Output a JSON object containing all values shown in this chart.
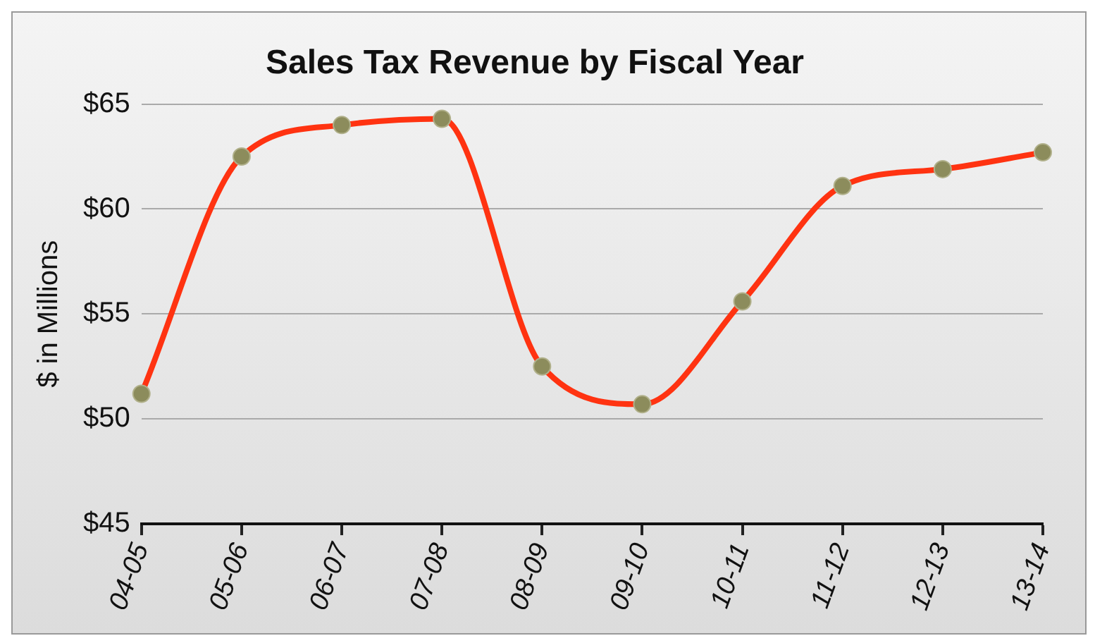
{
  "chart_data": {
    "type": "line",
    "title": "Sales Tax Revenue by Fiscal Year",
    "ylabel": "$ in Millions",
    "categories": [
      "04-05",
      "05-06",
      "06-07",
      "07-08",
      "08-09",
      "09-10",
      "10-11",
      "11-12",
      "12-13",
      "13-14"
    ],
    "series": [
      {
        "color": "#ff3311",
        "values": [
          51.2,
          62.5,
          64.0,
          64.3,
          52.5,
          50.7,
          55.6,
          61.1,
          61.9,
          62.7
        ]
      }
    ],
    "ylim": [
      45,
      65
    ],
    "yticks": [
      {
        "value": 45,
        "label": "$45"
      },
      {
        "value": 50,
        "label": "$50"
      },
      {
        "value": 55,
        "label": "$55"
      },
      {
        "value": 60,
        "label": "$60"
      },
      {
        "value": 65,
        "label": "$65"
      }
    ],
    "grid": "y",
    "marker": "circle",
    "line_style": "solid",
    "legend": false
  }
}
